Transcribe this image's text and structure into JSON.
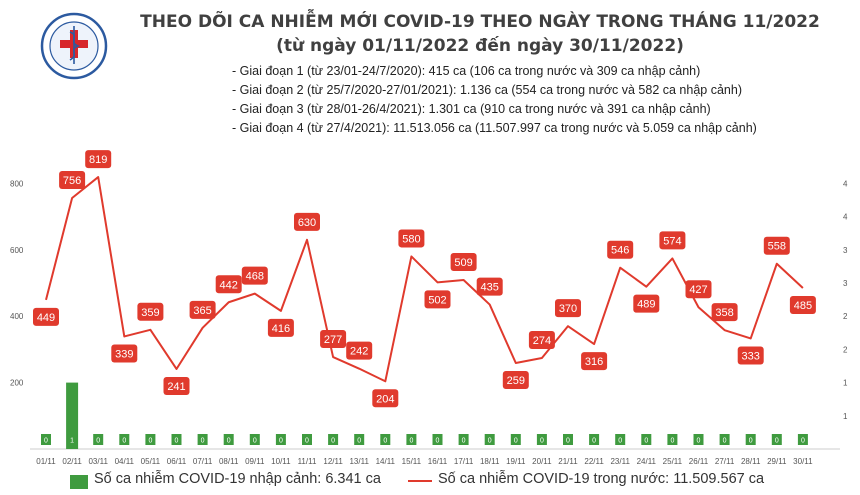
{
  "header": {
    "logo_text": "BỘ Y TẾ · MINISTRY OF HEALTH",
    "title": "THEO DÕI CA NHIỄM MỚI COVID-19 THEO NGÀY TRONG THÁNG 11/2022",
    "subtitle": "(từ ngày 01/11/2022 đến ngày 30/11/2022)"
  },
  "phases": [
    "- Giai đoạn 1 (từ 23/01-24/7/2020): 415 ca (106 ca trong nước và 309 ca nhập cảnh)",
    "- Giai đoạn 2 (từ 25/7/2020-27/01/2021): 1.136 ca (554 ca trong nước và 582 ca nhập cảnh)",
    "- Giai đoạn 3 (từ 28/01-26/4/2021): 1.301 ca (910 ca trong nước và 391 ca nhập cảnh)",
    "- Giai đoạn 4 (từ 27/4/2021): 11.513.056 ca (11.507.997 ca trong nước và 5.059 ca nhập cảnh)"
  ],
  "legend": {
    "imported": "Số ca nhiễm COVID-19 nhập cảnh: 6.341 ca",
    "domestic": "Số ca nhiễm COVID-19 trong nước: 11.509.567 ca"
  },
  "colors": {
    "line": "#e03a2d",
    "bar": "#3f9b3f",
    "axis_text": "#555555",
    "title": "#404040"
  },
  "chart_data": {
    "type": "bar+line",
    "categories": [
      "01/11",
      "02/11",
      "03/11",
      "04/11",
      "05/11",
      "06/11",
      "07/11",
      "08/11",
      "09/11",
      "10/11",
      "11/11",
      "12/11",
      "13/11",
      "14/11",
      "15/11",
      "16/11",
      "17/11",
      "18/11",
      "19/11",
      "20/11",
      "21/11",
      "22/11",
      "23/11",
      "24/11",
      "25/11",
      "26/11",
      "27/11",
      "28/11",
      "29/11",
      "30/11"
    ],
    "left_axis": {
      "ticks": [
        200,
        400,
        600,
        800
      ],
      "ylim": [
        0,
        1000
      ]
    },
    "right_axis": {
      "ticks": [
        "1",
        "1",
        "2",
        "2",
        "3",
        "3",
        "4",
        "4"
      ],
      "ylim": [
        0,
        5
      ]
    },
    "series": [
      {
        "kind": "line",
        "axis": "left",
        "values": [
          449,
          756,
          819,
          339,
          359,
          241,
          365,
          442,
          468,
          416,
          630,
          277,
          242,
          204,
          580,
          502,
          509,
          435,
          259,
          274,
          370,
          316,
          546,
          489,
          574,
          427,
          358,
          333,
          558,
          485
        ]
      },
      {
        "kind": "bar",
        "axis": "right",
        "values": [
          0,
          1,
          0,
          0,
          0,
          0,
          0,
          0,
          0,
          0,
          0,
          0,
          0,
          0,
          0,
          0,
          0,
          0,
          0,
          0,
          0,
          0,
          0,
          0,
          0,
          0,
          0,
          0,
          0,
          0
        ]
      }
    ]
  }
}
